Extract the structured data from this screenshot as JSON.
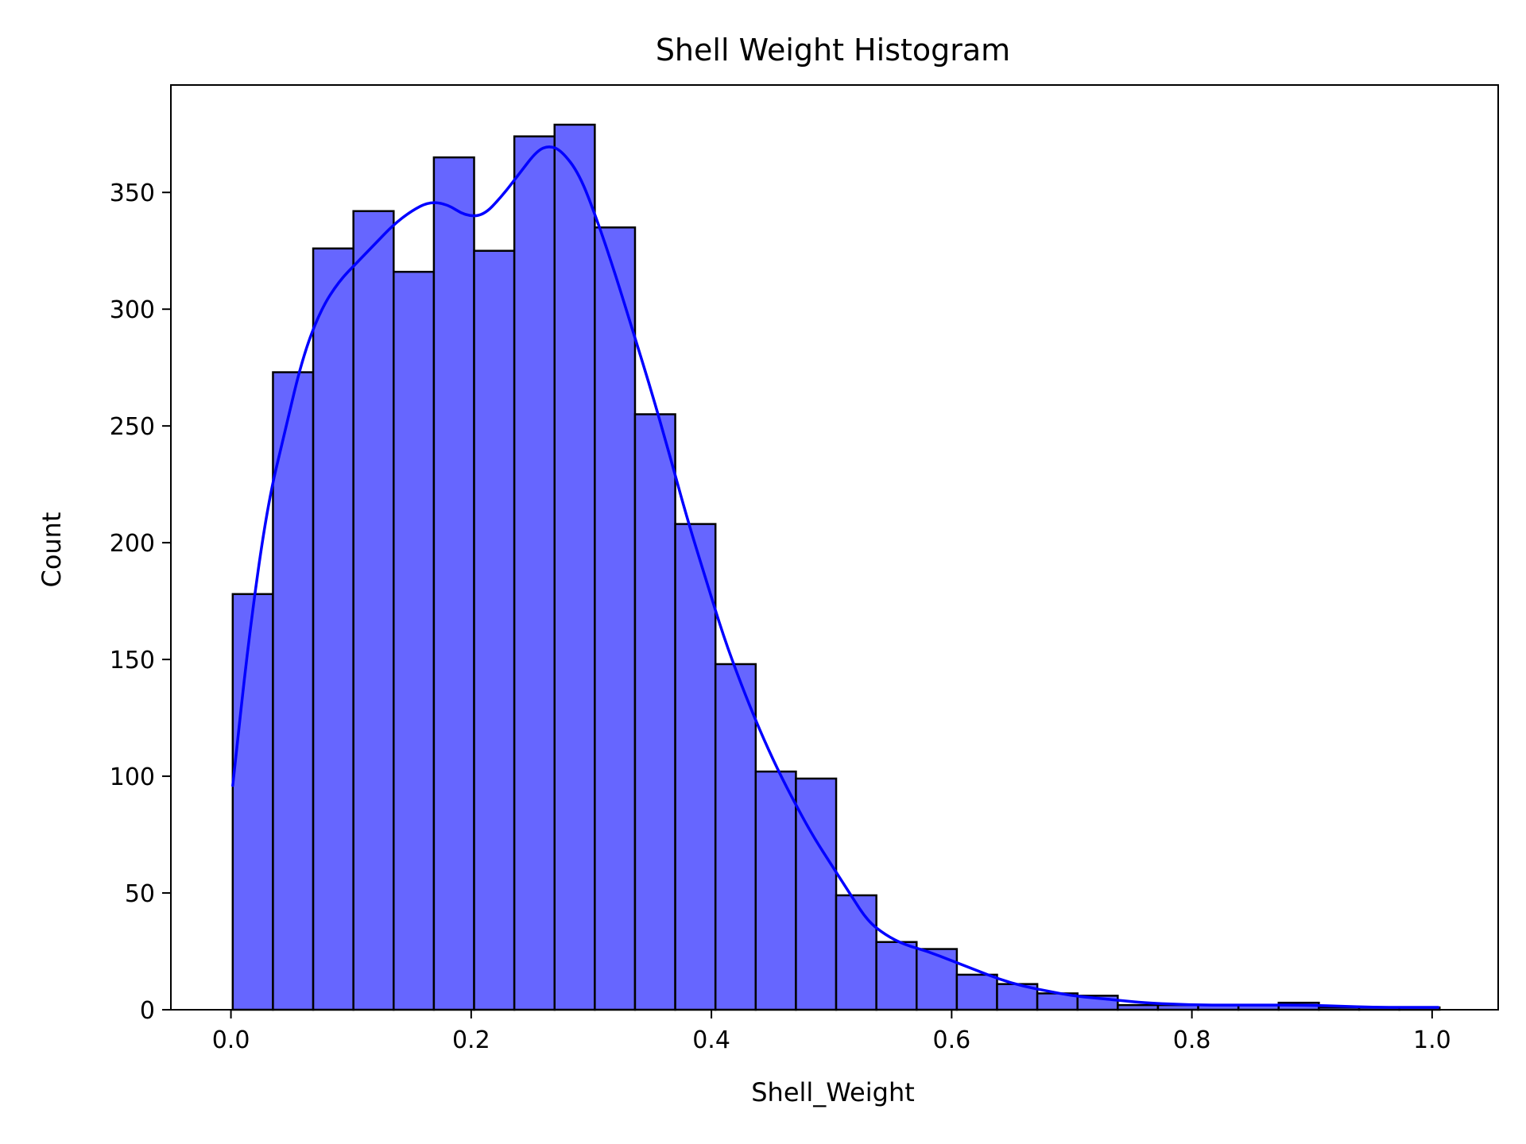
{
  "chart_data": {
    "type": "bar",
    "title": "Shell Weight Histogram",
    "xlabel": "Shell_Weight",
    "ylabel": "Count",
    "xlim": [
      -0.05,
      1.055
    ],
    "ylim": [
      0,
      396
    ],
    "x_ticks": [
      0.0,
      0.2,
      0.4,
      0.6,
      0.8,
      1.0
    ],
    "x_tick_labels": [
      "0.0",
      "0.2",
      "0.4",
      "0.6",
      "0.8",
      "1.0"
    ],
    "y_ticks": [
      0,
      50,
      100,
      150,
      200,
      250,
      300,
      350
    ],
    "y_tick_labels": [
      "0",
      "50",
      "100",
      "150",
      "200",
      "250",
      "300",
      "350"
    ],
    "grid": false,
    "bin_start": 0.0015,
    "bin_width": 0.03349,
    "counts": [
      178,
      273,
      326,
      342,
      316,
      365,
      325,
      374,
      379,
      335,
      255,
      208,
      148,
      102,
      99,
      49,
      29,
      26,
      15,
      11,
      7,
      6,
      2,
      2,
      2,
      2,
      3,
      1,
      1,
      1
    ],
    "bar_color": "#6666ff",
    "bar_edge_color": "#000000",
    "kde": {
      "color": "#0000ff",
      "points": [
        [
          0.0015,
          96
        ],
        [
          0.015,
          160
        ],
        [
          0.03,
          215
        ],
        [
          0.045,
          248
        ],
        [
          0.06,
          280
        ],
        [
          0.075,
          300
        ],
        [
          0.09,
          312
        ],
        [
          0.105,
          320
        ],
        [
          0.12,
          328
        ],
        [
          0.135,
          336
        ],
        [
          0.15,
          342
        ],
        [
          0.165,
          346
        ],
        [
          0.18,
          345
        ],
        [
          0.195,
          340
        ],
        [
          0.21,
          340
        ],
        [
          0.225,
          348
        ],
        [
          0.24,
          358
        ],
        [
          0.255,
          368
        ],
        [
          0.265,
          370
        ],
        [
          0.275,
          368
        ],
        [
          0.29,
          358
        ],
        [
          0.305,
          338
        ],
        [
          0.32,
          315
        ],
        [
          0.335,
          290
        ],
        [
          0.35,
          265
        ],
        [
          0.365,
          238
        ],
        [
          0.38,
          210
        ],
        [
          0.395,
          185
        ],
        [
          0.41,
          160
        ],
        [
          0.425,
          139
        ],
        [
          0.44,
          120
        ],
        [
          0.455,
          103
        ],
        [
          0.47,
          88
        ],
        [
          0.485,
          74
        ],
        [
          0.5,
          62
        ],
        [
          0.515,
          50
        ],
        [
          0.53,
          38
        ],
        [
          0.545,
          32
        ],
        [
          0.56,
          28
        ],
        [
          0.58,
          25
        ],
        [
          0.6,
          21
        ],
        [
          0.62,
          17
        ],
        [
          0.64,
          13
        ],
        [
          0.66,
          10
        ],
        [
          0.68,
          8
        ],
        [
          0.7,
          6
        ],
        [
          0.72,
          5
        ],
        [
          0.74,
          4
        ],
        [
          0.76,
          3
        ],
        [
          0.8,
          2
        ],
        [
          0.85,
          2
        ],
        [
          0.9,
          2
        ],
        [
          0.95,
          1
        ],
        [
          1.005,
          1
        ]
      ]
    }
  }
}
